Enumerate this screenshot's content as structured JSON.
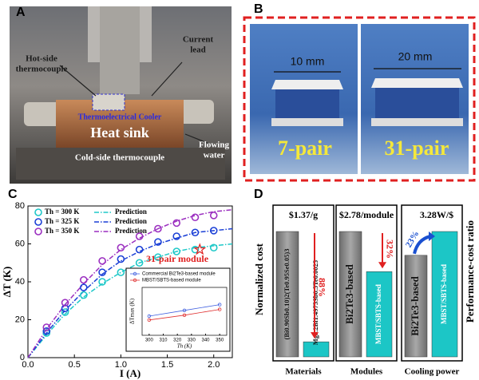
{
  "panels": {
    "A": {
      "letter": "A",
      "hot_side": [
        "Hot-side",
        "thermocouple"
      ],
      "current": [
        "Current",
        "lead"
      ],
      "cooler": "Thermoelectrical Cooler",
      "heat_sink": "Heat sink",
      "water": [
        "Flowing",
        "water"
      ],
      "cold_side": "Cold-side thermocouple"
    },
    "B": {
      "letter": "B",
      "size_small": "10 mm",
      "size_large": "20 mm",
      "small": "7-pair",
      "large": "31-pair"
    }
  },
  "chart_data": [
    {
      "type": "scatter",
      "letter": "C",
      "xlabel": "I (A)",
      "ylabel": "ΔT (K)",
      "x": [
        0.2,
        0.4,
        0.6,
        0.8,
        1.0,
        1.2,
        1.4,
        1.6,
        1.8,
        2.0
      ],
      "series": [
        {
          "name": "Th = 300 K",
          "color": "#1ec8c8",
          "values": [
            13,
            24,
            33,
            40,
            45,
            50,
            53,
            56,
            57,
            58
          ]
        },
        {
          "name": "Th = 325 K",
          "color": "#1a3fd6",
          "values": [
            14,
            26,
            37,
            45,
            52,
            57,
            61,
            64,
            66,
            67
          ]
        },
        {
          "name": "Th = 350 K",
          "color": "#9b2fc0",
          "values": [
            16,
            29,
            41,
            51,
            58,
            64,
            68,
            71,
            74,
            75
          ]
        }
      ],
      "prediction_x": [
        0,
        0.2,
        0.4,
        0.6,
        0.8,
        1.0,
        1.2,
        1.4,
        1.6,
        1.8,
        2.0,
        2.2
      ],
      "predictions": [
        {
          "name": "Prediction",
          "color": "#1ec8c8",
          "values": [
            0,
            12,
            23,
            32,
            39,
            45,
            50,
            53,
            56,
            58,
            59,
            60
          ]
        },
        {
          "name": "Prediction",
          "color": "#1a3fd6",
          "values": [
            0,
            13,
            25,
            35,
            44,
            51,
            56,
            60,
            63,
            66,
            67,
            68
          ]
        },
        {
          "name": "Prediction",
          "color": "#9b2fc0",
          "values": [
            0,
            15,
            28,
            39,
            49,
            57,
            63,
            68,
            72,
            75,
            77,
            78
          ]
        }
      ],
      "annotation": {
        "text": "31-pair module",
        "x": 1.85,
        "y": 57,
        "color": "#e02020"
      },
      "xlim": [
        0,
        2.2
      ],
      "xticks": [
        {
          "value": 0,
          "label": "0.0"
        },
        0.5,
        {
          "value": 1,
          "label": "1.0"
        },
        1.5,
        {
          "value": 2,
          "label": "2.0"
        }
      ],
      "ylim": [
        0,
        80
      ],
      "yticks": [
        0,
        20,
        40,
        60,
        80
      ],
      "inset": {
        "type": "line",
        "xlabel": "Th (K)",
        "ylabel": "ΔTmax (K)",
        "x": [
          300,
          325,
          350
        ],
        "series": [
          {
            "name": "Commercial Bi2Te3-based module",
            "color": "#4060e0",
            "values": [
              60,
              66,
              72
            ]
          },
          {
            "name": "MBST/SBTS-based module",
            "color": "#e03030",
            "values": [
              56,
              61,
              67
            ]
          }
        ],
        "xlim": [
          295,
          355
        ],
        "xticks": [
          300,
          310,
          320,
          330,
          340,
          350
        ],
        "ylim": [
          40,
          90
        ]
      }
    },
    {
      "type": "bar",
      "letter": "D",
      "ylabel": "Normalized cost",
      "y2label": "Performance-cost ratio",
      "ylim": [
        0,
        100
      ],
      "groups": [
        {
          "name": "Materials",
          "price": "$1.37/g",
          "change": "88%",
          "bars": [
            {
              "label": "(Bi0.90Sb0.10)2(Te0.95Se0.05)3",
              "value": 100,
              "color": "#8c8c8c"
            },
            {
              "label": "Mg3.2Bi1.4975Sb0.5Te0.0025",
              "value": 12,
              "color": "#1cc6c6"
            }
          ]
        },
        {
          "name": "Modules",
          "price": "$2.78/module",
          "change": "32%",
          "bars": [
            {
              "label": "Bi2Te3-based",
              "value": 100,
              "color": "#8c8c8c"
            },
            {
              "label": "MBST/SBTS-based",
              "value": 68,
              "color": "#1cc6c6"
            }
          ]
        },
        {
          "name": "Cooling power",
          "price": "3.28W/$",
          "change": "23%",
          "bars": [
            {
              "label": "Bi2Te3-based",
              "value": 81,
              "color": "#8c8c8c"
            },
            {
              "label": "MBST/SBTS-based",
              "value": 100,
              "color": "#1cc6c6"
            }
          ]
        }
      ]
    }
  ]
}
